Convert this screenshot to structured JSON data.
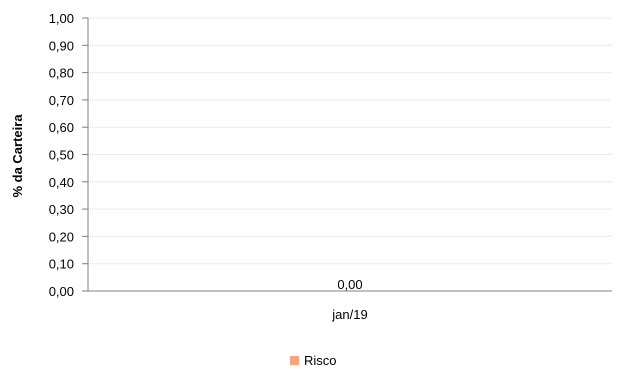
{
  "chart_data": {
    "type": "bar",
    "categories": [
      "jan/19"
    ],
    "series": [
      {
        "name": "Risco",
        "values": [
          0.0
        ],
        "color": "#F4A582"
      }
    ],
    "data_labels": [
      "0,00"
    ],
    "title": "",
    "xlabel": "",
    "ylabel": "% da Carteira",
    "ylim": [
      0,
      1.0
    ],
    "yticks": [
      "0,00",
      "0,10",
      "0,20",
      "0,30",
      "0,40",
      "0,50",
      "0,60",
      "0,70",
      "0,80",
      "0,90",
      "1,00"
    ],
    "grid": true,
    "legend_position": "bottom-center"
  }
}
